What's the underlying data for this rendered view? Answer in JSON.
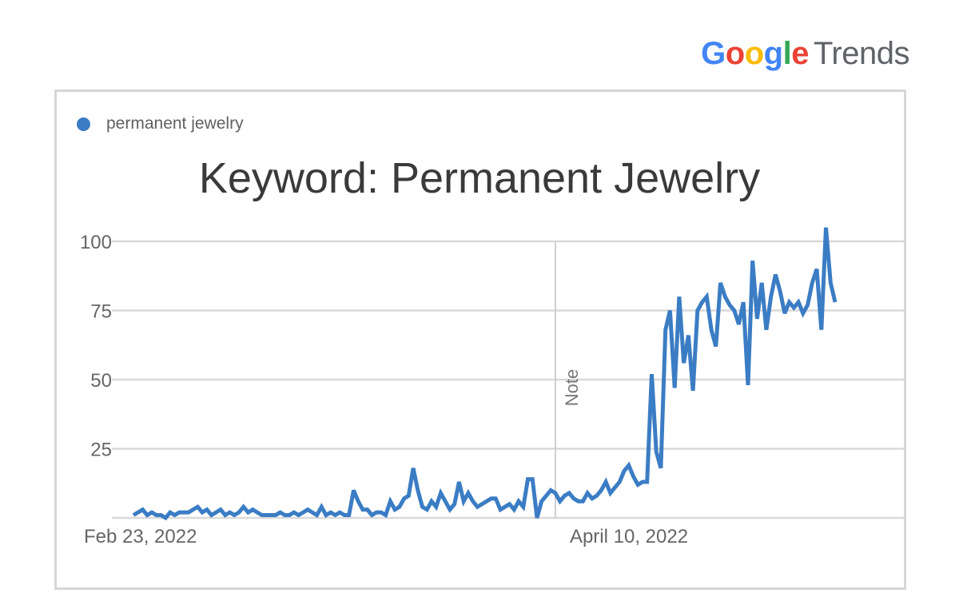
{
  "brand": {
    "google_letters": [
      {
        "ch": "G",
        "color": "#4285F4"
      },
      {
        "ch": "o",
        "color": "#EA4335"
      },
      {
        "ch": "o",
        "color": "#FBBC05"
      },
      {
        "ch": "g",
        "color": "#4285F4"
      },
      {
        "ch": "l",
        "color": "#34A853"
      },
      {
        "ch": "e",
        "color": "#EA4335"
      }
    ],
    "product": "Trends"
  },
  "legend": {
    "label": "permanent jewelry",
    "color": "#3b7dc4"
  },
  "chart_data": {
    "type": "line",
    "title": "Keyword: Permanent Jewelry",
    "xlabel": "",
    "ylabel": "",
    "ylim": [
      0,
      100
    ],
    "yticks": [
      100,
      75,
      50,
      25
    ],
    "grid": true,
    "legend_position": "top-left",
    "x_tick_labels": [
      {
        "label": "Feb 23, 2022",
        "index": 0
      },
      {
        "label": "April 10, 2022",
        "index": 92
      }
    ],
    "annotations": [
      {
        "text": "Note",
        "index": 92
      }
    ],
    "series": [
      {
        "name": "permanent jewelry",
        "color": "#3b7dc4",
        "values": [
          1,
          2,
          3,
          1,
          2,
          1,
          1,
          0,
          2,
          1,
          2,
          2,
          2,
          3,
          4,
          2,
          3,
          1,
          2,
          3,
          1,
          2,
          1,
          2,
          4,
          2,
          3,
          2,
          1,
          1,
          1,
          1,
          2,
          1,
          1,
          2,
          1,
          2,
          3,
          2,
          1,
          4,
          1,
          2,
          1,
          2,
          1,
          1,
          10,
          6,
          3,
          3,
          1,
          2,
          2,
          1,
          6,
          3,
          4,
          7,
          8,
          18,
          10,
          4,
          3,
          6,
          4,
          9,
          6,
          3,
          5,
          13,
          6,
          9,
          6,
          4,
          5,
          6,
          7,
          7,
          3,
          4,
          5,
          3,
          6,
          4,
          14,
          14,
          0,
          6,
          8,
          10,
          9,
          6,
          8,
          9,
          7,
          6,
          6,
          9,
          7,
          8,
          10,
          13,
          9,
          11,
          13,
          17,
          19,
          15,
          12,
          13,
          13,
          52,
          24,
          18,
          68,
          75,
          47,
          80,
          56,
          66,
          46,
          75,
          78,
          80,
          68,
          62,
          85,
          80,
          77,
          75,
          70,
          78,
          48,
          93,
          72,
          85,
          68,
          80,
          88,
          82,
          74,
          78,
          76,
          78,
          74,
          77,
          85,
          90,
          68,
          105,
          85,
          78
        ]
      }
    ]
  }
}
